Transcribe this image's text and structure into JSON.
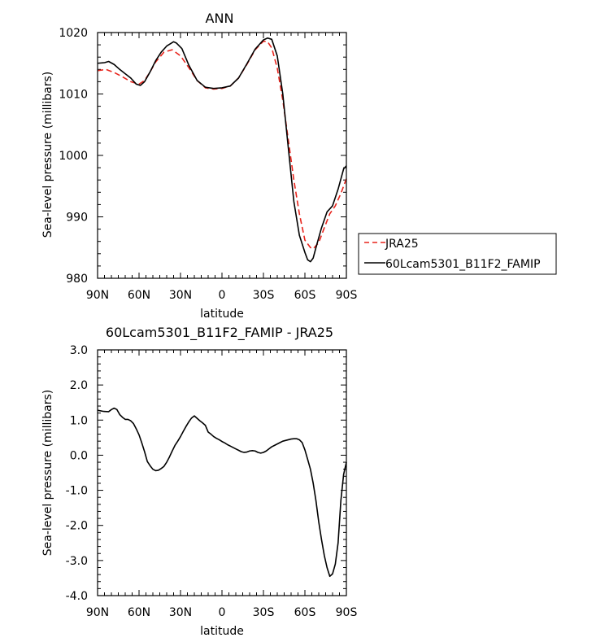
{
  "chart_data": [
    {
      "type": "line",
      "title": "ANN",
      "xlabel": "latitude",
      "ylabel": "Sea-level pressure (millibars)",
      "xlim": [
        90,
        -90
      ],
      "ylim": [
        980,
        1020
      ],
      "x_ticks": [
        90,
        60,
        30,
        0,
        -30,
        -60,
        -90
      ],
      "x_tick_labels": [
        "90N",
        "60N",
        "30N",
        "0",
        "30S",
        "60S",
        "90S"
      ],
      "y_ticks": [
        980,
        990,
        1000,
        1010,
        1020
      ],
      "y_tick_labels": [
        "980",
        "990",
        "1000",
        "1010",
        "1020"
      ],
      "legend_position": "right",
      "series": [
        {
          "name": "JRA25",
          "color": "#e8241c",
          "dash": "dashed",
          "x": [
            90,
            84,
            78,
            72,
            66,
            60,
            56,
            52,
            48,
            42,
            36,
            30,
            24,
            18,
            12,
            6,
            0,
            -6,
            -12,
            -18,
            -24,
            -30,
            -33,
            -36,
            -40,
            -44,
            -48,
            -52,
            -56,
            -60,
            -64,
            -66,
            -70,
            -74,
            -78,
            -82,
            -86,
            -90
          ],
          "values": [
            1013.8,
            1014,
            1013.5,
            1012.8,
            1012,
            1011.6,
            1012.2,
            1013.6,
            1015.2,
            1016.8,
            1017.2,
            1016.2,
            1014.3,
            1012.2,
            1011,
            1010.8,
            1010.9,
            1011.3,
            1012.6,
            1014.8,
            1017.2,
            1018.6,
            1018.5,
            1017.5,
            1014.2,
            1009,
            1002.5,
            996,
            990.5,
            986.2,
            985,
            984.8,
            985.8,
            988.2,
            990.5,
            991.8,
            993.8,
            996.2
          ]
        },
        {
          "name": "60Lcam5301_B11F2_FAMIP",
          "color": "#000000",
          "dash": "solid",
          "x": [
            90,
            85,
            82,
            78,
            74,
            70,
            66,
            62,
            59,
            56,
            52,
            48,
            44,
            40,
            35,
            33,
            29,
            24,
            18,
            12,
            6,
            0,
            -6,
            -12,
            -18,
            -24,
            -30,
            -33,
            -36,
            -40,
            -44,
            -48,
            -52,
            -56,
            -60,
            -62,
            -64,
            -66,
            -68,
            -72,
            -76,
            -80,
            -84,
            -88,
            -90
          ],
          "values": [
            1015,
            1015.1,
            1015.3,
            1014.8,
            1014,
            1013.3,
            1012.6,
            1011.6,
            1011.4,
            1012,
            1013.6,
            1015.4,
            1016.8,
            1017.8,
            1018.5,
            1018.3,
            1017.4,
            1014.7,
            1012.2,
            1011.1,
            1010.9,
            1011,
            1011.3,
            1012.6,
            1014.9,
            1017.3,
            1018.8,
            1019.1,
            1018.9,
            1016.2,
            1010,
            1001.2,
            992.5,
            987,
            984.2,
            983,
            982.7,
            983.3,
            985,
            988.2,
            990.8,
            991.8,
            994.5,
            997.8,
            998.3
          ]
        }
      ]
    },
    {
      "type": "line",
      "title": "60Lcam5301_B11F2_FAMIP - JRA25",
      "xlabel": "latitude",
      "ylabel": "Sea-level pressure (millibars)",
      "xlim": [
        90,
        -90
      ],
      "ylim": [
        -4,
        3
      ],
      "x_ticks": [
        90,
        60,
        30,
        0,
        -30,
        -60,
        -90
      ],
      "x_tick_labels": [
        "90N",
        "60N",
        "30N",
        "0",
        "30S",
        "60S",
        "90S"
      ],
      "y_ticks": [
        -4,
        -3,
        -2,
        -1,
        0,
        1,
        2,
        3
      ],
      "y_tick_labels": [
        "-4.0",
        "-3.0",
        "-2.0",
        "-1.0",
        "0.0",
        "1.0",
        "2.0",
        "3.0"
      ],
      "series": [
        {
          "color": "#000000",
          "dash": "solid",
          "x": [
            90,
            86,
            82,
            80,
            78,
            76,
            74,
            72,
            70,
            68,
            66,
            64,
            62,
            60,
            58,
            56,
            54,
            52,
            50,
            48,
            46,
            44,
            42,
            40,
            38,
            36,
            35,
            34,
            32,
            30,
            28,
            26,
            24,
            22,
            20,
            18,
            16,
            14,
            12,
            10,
            8,
            6,
            4,
            2,
            0,
            -2,
            -4,
            -6,
            -8,
            -10,
            -12,
            -14,
            -16,
            -18,
            -20,
            -22,
            -24,
            -26,
            -28,
            -30,
            -32,
            -34,
            -36,
            -38,
            -40,
            -42,
            -44,
            -46,
            -48,
            -50,
            -52,
            -54,
            -56,
            -58,
            -60,
            -62,
            -64,
            -66,
            -68,
            -70,
            -72,
            -74,
            -76,
            -78,
            -80,
            -82,
            -84,
            -86,
            -88,
            -90
          ],
          "values": [
            1.28,
            1.25,
            1.24,
            1.3,
            1.34,
            1.3,
            1.16,
            1.08,
            1.02,
            1.02,
            0.98,
            0.9,
            0.75,
            0.58,
            0.35,
            0.1,
            -0.18,
            -0.3,
            -0.4,
            -0.44,
            -0.43,
            -0.38,
            -0.32,
            -0.2,
            -0.05,
            0.12,
            0.2,
            0.28,
            0.4,
            0.53,
            0.68,
            0.82,
            0.95,
            1.06,
            1.12,
            1.05,
            0.98,
            0.92,
            0.85,
            0.66,
            0.6,
            0.53,
            0.48,
            0.44,
            0.39,
            0.35,
            0.3,
            0.26,
            0.22,
            0.18,
            0.14,
            0.1,
            0.08,
            0.09,
            0.12,
            0.13,
            0.12,
            0.08,
            0.06,
            0.08,
            0.12,
            0.18,
            0.24,
            0.28,
            0.32,
            0.36,
            0.4,
            0.42,
            0.44,
            0.46,
            0.47,
            0.47,
            0.44,
            0.36,
            0.15,
            -0.12,
            -0.4,
            -0.8,
            -1.3,
            -1.9,
            -2.4,
            -2.85,
            -3.2,
            -3.45,
            -3.38,
            -3.1,
            -2.5,
            -1.3,
            -0.55,
            -0.2
          ]
        }
      ]
    }
  ]
}
